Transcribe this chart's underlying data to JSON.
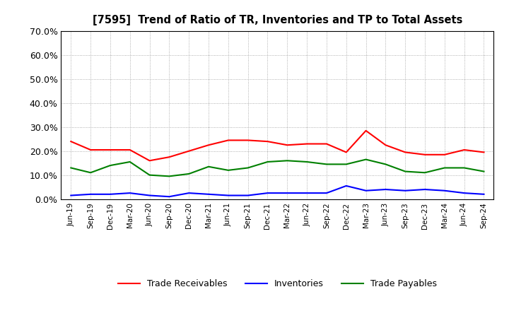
{
  "title": "[7595]  Trend of Ratio of TR, Inventories and TP to Total Assets",
  "x_labels": [
    "Jun-19",
    "Sep-19",
    "Dec-19",
    "Mar-20",
    "Jun-20",
    "Sep-20",
    "Dec-20",
    "Mar-21",
    "Jun-21",
    "Sep-21",
    "Dec-21",
    "Mar-22",
    "Jun-22",
    "Sep-22",
    "Dec-22",
    "Mar-23",
    "Jun-23",
    "Sep-23",
    "Dec-23",
    "Mar-24",
    "Jun-24",
    "Sep-24"
  ],
  "trade_receivables": [
    24.0,
    20.5,
    20.5,
    20.5,
    16.0,
    17.5,
    20.0,
    22.5,
    24.5,
    24.5,
    24.0,
    22.5,
    23.0,
    23.0,
    19.5,
    28.5,
    22.5,
    19.5,
    18.5,
    18.5,
    20.5,
    19.5
  ],
  "inventories": [
    1.5,
    2.0,
    2.0,
    2.5,
    1.5,
    1.0,
    2.5,
    2.0,
    1.5,
    1.5,
    2.5,
    2.5,
    2.5,
    2.5,
    5.5,
    3.5,
    4.0,
    3.5,
    4.0,
    3.5,
    2.5,
    2.0
  ],
  "trade_payables": [
    13.0,
    11.0,
    14.0,
    15.5,
    10.0,
    9.5,
    10.5,
    13.5,
    12.0,
    13.0,
    15.5,
    16.0,
    15.5,
    14.5,
    14.5,
    16.5,
    14.5,
    11.5,
    11.0,
    13.0,
    13.0,
    11.5
  ],
  "tr_color": "#FF0000",
  "inv_color": "#0000FF",
  "tp_color": "#008000",
  "ylim": [
    0.0,
    70.0
  ],
  "yticks": [
    0.0,
    10.0,
    20.0,
    30.0,
    40.0,
    50.0,
    60.0,
    70.0
  ],
  "legend_labels": [
    "Trade Receivables",
    "Inventories",
    "Trade Payables"
  ],
  "bg_color": "#FFFFFF",
  "grid_color": "#AAAAAA"
}
